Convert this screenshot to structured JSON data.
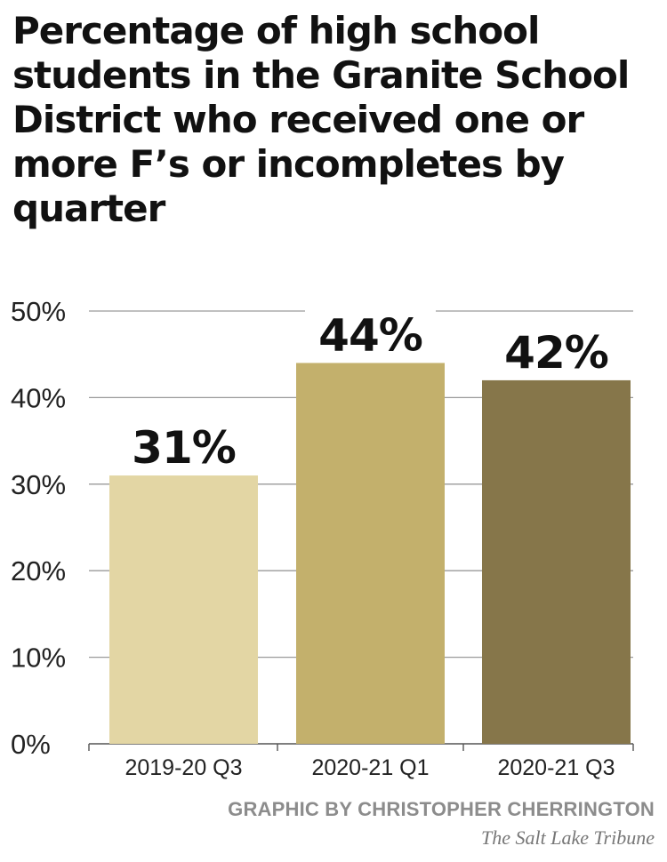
{
  "chart_data": {
    "type": "bar",
    "title": "Percentage of high school students in the Granite School District who received one or more F’s or incompletes by quarter",
    "categories": [
      "2019-20 Q3",
      "2020-21 Q1",
      "2020-21 Q3"
    ],
    "values": [
      31,
      44,
      42
    ],
    "data_labels": [
      "31%",
      "44%",
      "42%"
    ],
    "bar_colors": [
      "#e3d6a4",
      "#c3b06c",
      "#86764a"
    ],
    "ylim": [
      0,
      50
    ],
    "yticks": [
      0,
      10,
      20,
      30,
      40,
      50
    ],
    "ytick_labels": [
      "0%",
      "10%",
      "20%",
      "30%",
      "40%",
      "50%"
    ],
    "xlabel": "",
    "ylabel": "",
    "grid": true,
    "grid_color": "#9a9a9a"
  },
  "footer": {
    "credit": "GRAPHIC BY CHRISTOPHER CHERRINGTON",
    "publisher": "The Salt Lake Tribune"
  }
}
